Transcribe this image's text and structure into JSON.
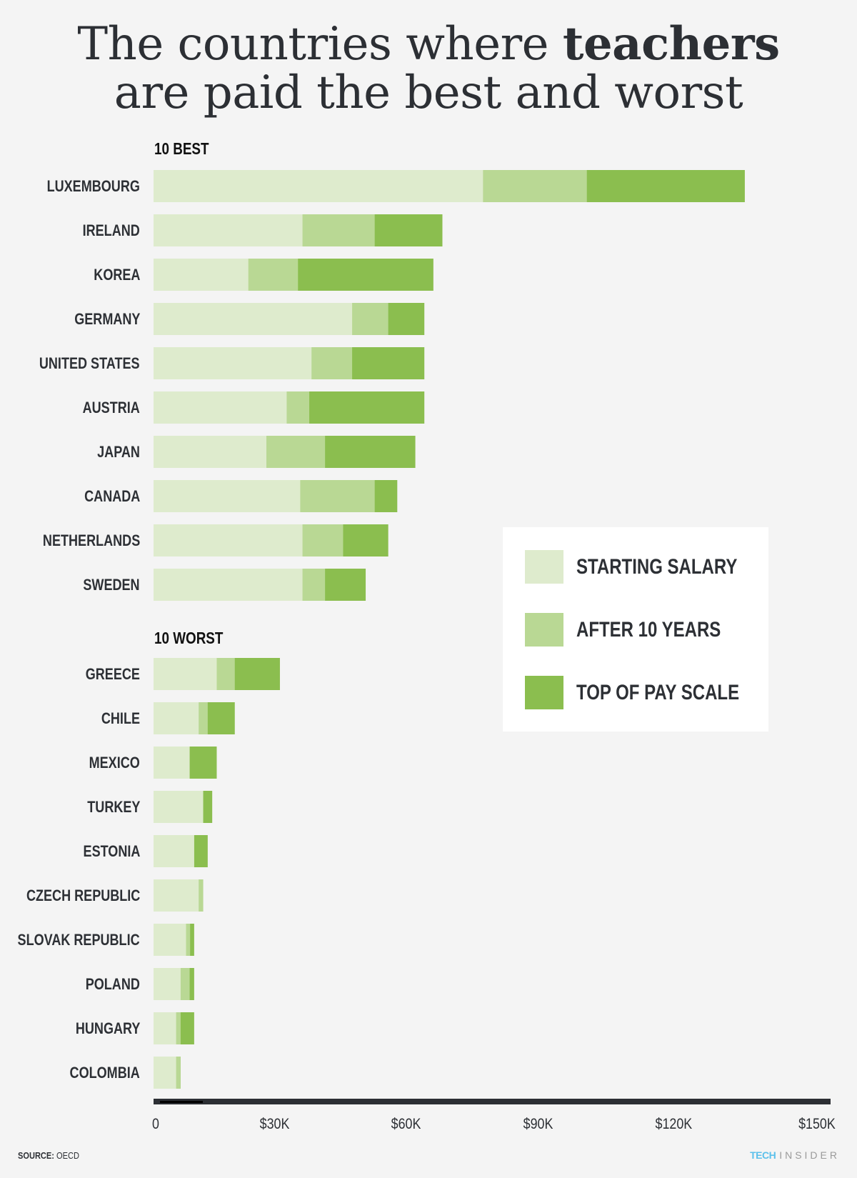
{
  "title": {
    "line1_prefix": "The countries where ",
    "line1_bold": "teachers",
    "line2": "are paid the best and worst"
  },
  "colors": {
    "background": "#f4f4f4",
    "starting_salary": "#deebcd",
    "after_10_years": "#b9d894",
    "top_of_pay_scale": "#8bbe4f",
    "text": "#2d3035",
    "brand_tech": "#5bc0eb",
    "brand_insider": "#9a9a9a"
  },
  "chart_data": {
    "type": "bar",
    "orientation": "horizontal",
    "title": "The countries where teachers are paid the best and worst",
    "xlabel": "",
    "ylabel": "",
    "xlim": [
      0,
      150000
    ],
    "x_ticks": [
      "0",
      "$30K",
      "$60K",
      "$90K",
      "$120K",
      "$150K"
    ],
    "grid": false,
    "legend_position": "right-middle",
    "legend": [
      "STARTING SALARY",
      "AFTER 10 YEARS",
      "TOP OF PAY SCALE"
    ],
    "note": "Segments are overlaid: each bar shows starting salary, salary after 10 years, and top of pay scale (cumulative values, USD).",
    "groups": [
      {
        "label": "10 BEST",
        "categories": [
          "LUXEMBOURG",
          "IRELAND",
          "KOREA",
          "GERMANY",
          "UNITED STATES",
          "AUSTRIA",
          "JAPAN",
          "CANADA",
          "NETHERLANDS",
          "SWEDEN"
        ],
        "series": [
          {
            "name": "STARTING SALARY",
            "values": [
              73000,
              33000,
              21000,
              44000,
              35000,
              29500,
              25000,
              32500,
              33000,
              33000
            ]
          },
          {
            "name": "AFTER 10 YEARS",
            "values": [
              96000,
              49000,
              32000,
              52000,
              44000,
              34500,
              38000,
              49000,
              42000,
              38000
            ]
          },
          {
            "name": "TOP OF PAY SCALE",
            "values": [
              131000,
              64000,
              62000,
              60000,
              60000,
              60000,
              58000,
              54000,
              52000,
              47000
            ]
          }
        ]
      },
      {
        "label": "10 WORST",
        "categories": [
          "GREECE",
          "CHILE",
          "MEXICO",
          "TURKEY",
          "ESTONIA",
          "CZECH REPUBLIC",
          "SLOVAK REPUBLIC",
          "POLAND",
          "HUNGARY",
          "COLOMBIA"
        ],
        "series": [
          {
            "name": "STARTING SALARY",
            "values": [
              14000,
              10000,
              8000,
              11000,
              9000,
              10000,
              7200,
              6000,
              5000,
              5000
            ]
          },
          {
            "name": "AFTER 10 YEARS",
            "values": [
              18000,
              12000,
              8000,
              11000,
              9000,
              11000,
              8100,
              8000,
              6000,
              6000
            ]
          },
          {
            "name": "TOP OF PAY SCALE",
            "values": [
              28000,
              18000,
              14000,
              13000,
              12000,
              11000,
              9000,
              9000,
              9000,
              6000
            ]
          }
        ]
      }
    ]
  },
  "footer": {
    "source_label": "SOURCE:",
    "source_value": " OECD",
    "brand_tech": "TECH",
    "brand_insider": "INSIDER"
  }
}
